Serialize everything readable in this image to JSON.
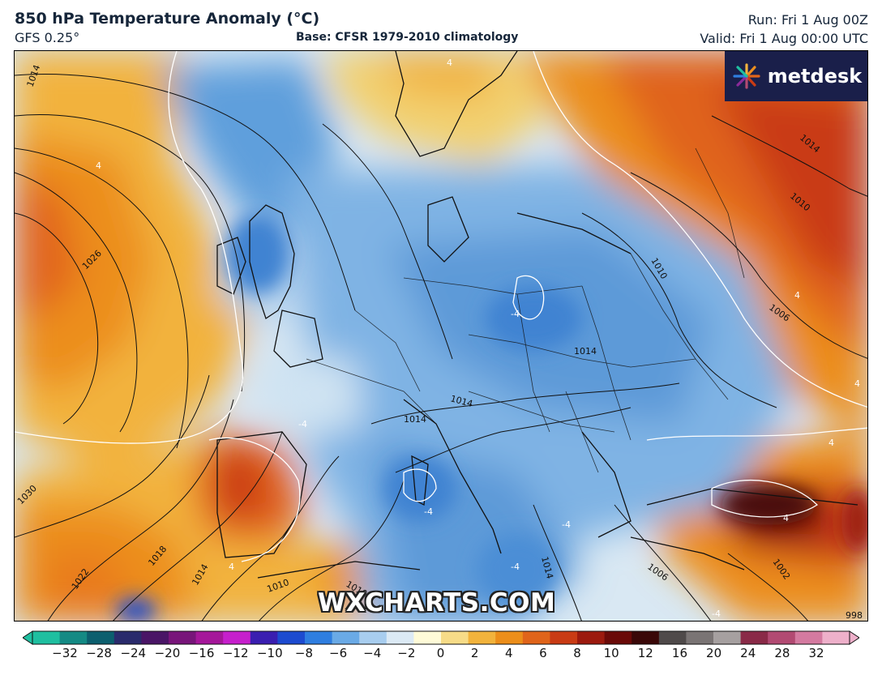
{
  "header": {
    "title": "850 hPa Temperature Anomaly (°C)",
    "model": "GFS 0.25°",
    "base": "Base: CFSR 1979-2010 climatology",
    "run": "Run: Fri 1 Aug 00Z",
    "valid": "Valid: Fri 1 Aug 00:00 UTC"
  },
  "logo": {
    "name": "metdesk",
    "icon": "flower-burst-icon"
  },
  "watermark": "WXCHARTS.COM",
  "map": {
    "variable": "850 hPa temperature anomaly",
    "isobar_labels": [
      "1014",
      "1026",
      "1030",
      "1022",
      "1018",
      "1014",
      "1010",
      "1010",
      "1014",
      "1014",
      "1014",
      "1010",
      "1010",
      "1006",
      "1006",
      "1002",
      "1014",
      "1014",
      "1010",
      "998"
    ],
    "anomaly_contour_labels": [
      "4",
      "4",
      "4",
      "-4",
      "-4",
      "-4",
      "-4",
      "-4",
      "-4",
      "4",
      "4",
      "4",
      "4",
      "4",
      "4",
      "-4",
      "-4",
      "-4",
      "-4",
      "4",
      "4",
      "4",
      "4",
      "4",
      "4",
      "4"
    ]
  },
  "colorbar": {
    "ticks": [
      "−32",
      "−28",
      "−24",
      "−20",
      "−16",
      "−12",
      "−10",
      "−8",
      "−6",
      "−4",
      "−2",
      "0",
      "2",
      "4",
      "6",
      "8",
      "10",
      "12",
      "16",
      "20",
      "24",
      "28",
      "32"
    ],
    "colors": [
      "#1fbfa0",
      "#148a84",
      "#0c5f6e",
      "#2a2b6c",
      "#4a1566",
      "#78157a",
      "#a5179a",
      "#c61fcc",
      "#3a1eb0",
      "#1d4bd0",
      "#2f7ee0",
      "#6aaae6",
      "#a8cdef",
      "#dceaf5",
      "#fffbd8",
      "#f7dc88",
      "#f2b33c",
      "#ec8e1a",
      "#e0641a",
      "#c93b14",
      "#9c1a0e",
      "#6a0a08",
      "#3a0808",
      "#4f4a4a",
      "#7a7474",
      "#a6a0a0",
      "#8a2a48",
      "#b24a72",
      "#d47aa0",
      "#eeb0ca"
    ]
  }
}
